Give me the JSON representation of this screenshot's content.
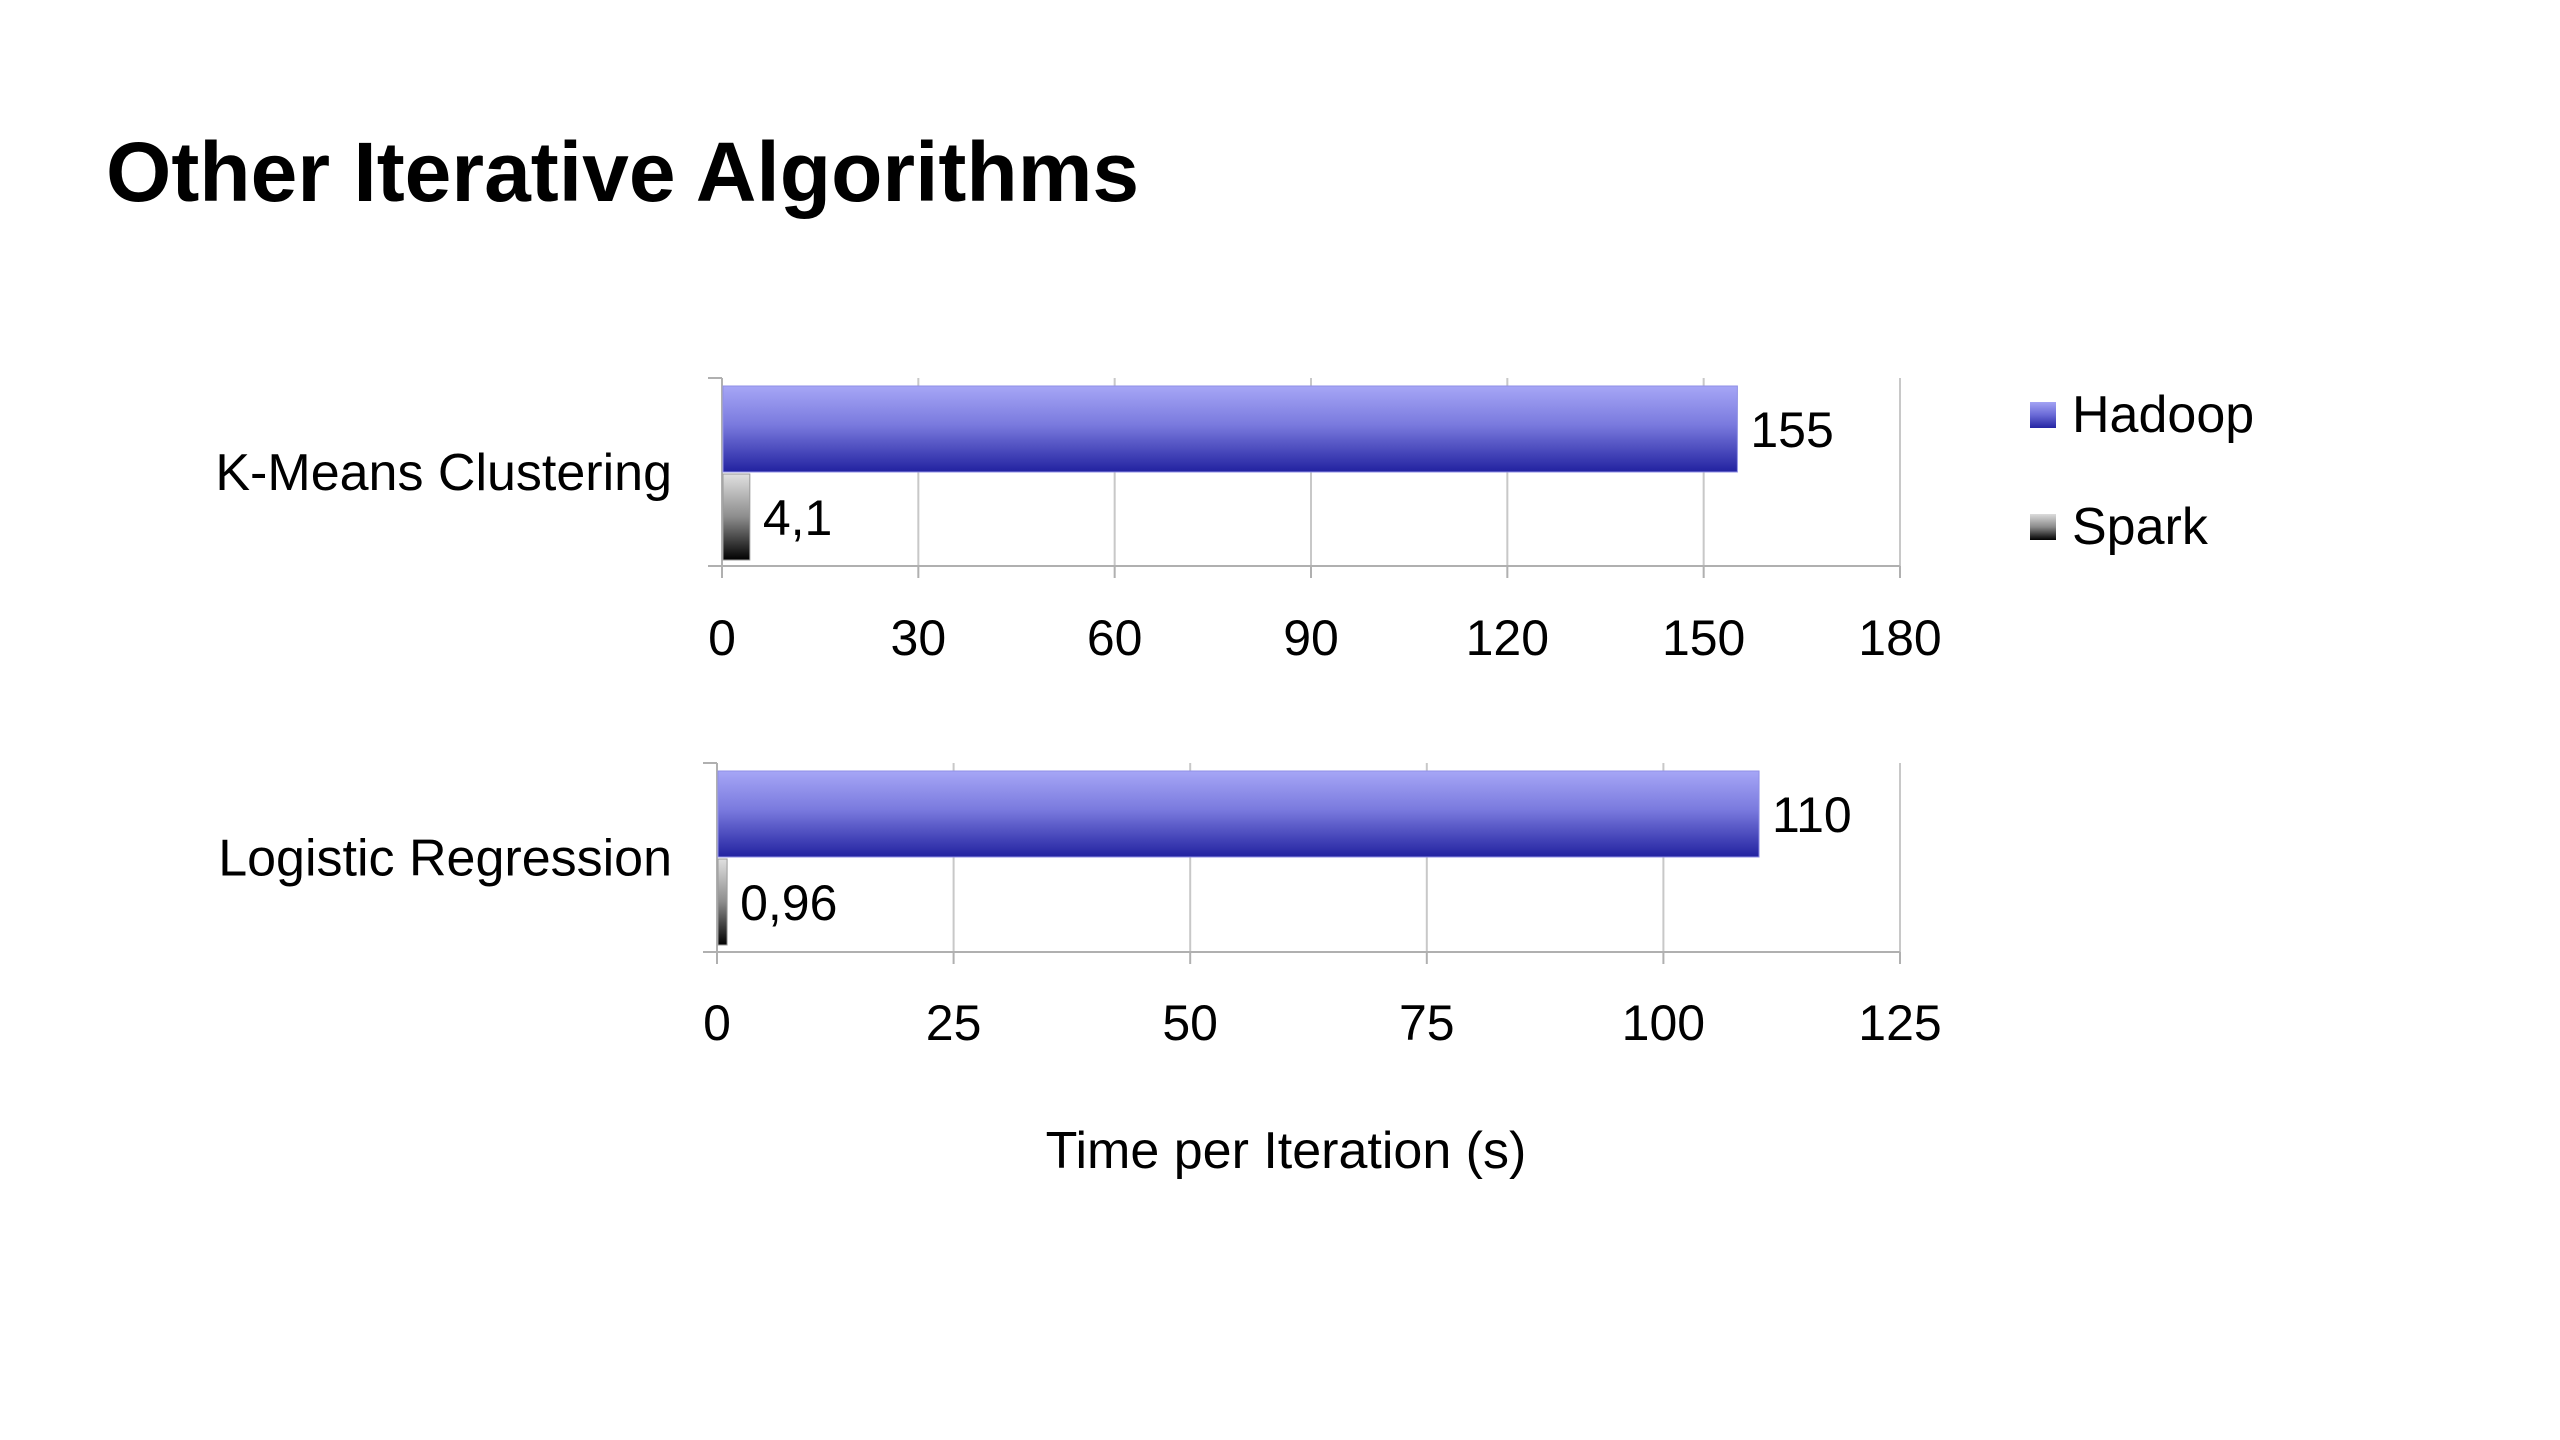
{
  "slide": {
    "title": "Other Iterative Algorithms"
  },
  "legend": [
    {
      "label": "Hadoop",
      "color": "#5a5ad0"
    },
    {
      "label": "Spark",
      "color": "#666666"
    }
  ],
  "chart_data": {
    "type": "bar",
    "orientation": "horizontal",
    "xlabel": "Time per Iteration (s)",
    "legend_position": "right",
    "grid": true,
    "panels": [
      {
        "category": "K-Means Clustering",
        "xlim": [
          0,
          180
        ],
        "ticks": [
          0,
          30,
          60,
          90,
          120,
          150,
          180
        ],
        "series": [
          {
            "name": "Hadoop",
            "value": 155,
            "label": "155"
          },
          {
            "name": "Spark",
            "value": 4.1,
            "label": "4,1"
          }
        ]
      },
      {
        "category": "Logistic Regression",
        "xlim": [
          0,
          125
        ],
        "ticks": [
          0,
          25,
          50,
          75,
          100,
          125
        ],
        "series": [
          {
            "name": "Hadoop",
            "value": 110,
            "label": "110"
          },
          {
            "name": "Spark",
            "value": 0.96,
            "label": "0,96"
          }
        ]
      }
    ]
  }
}
